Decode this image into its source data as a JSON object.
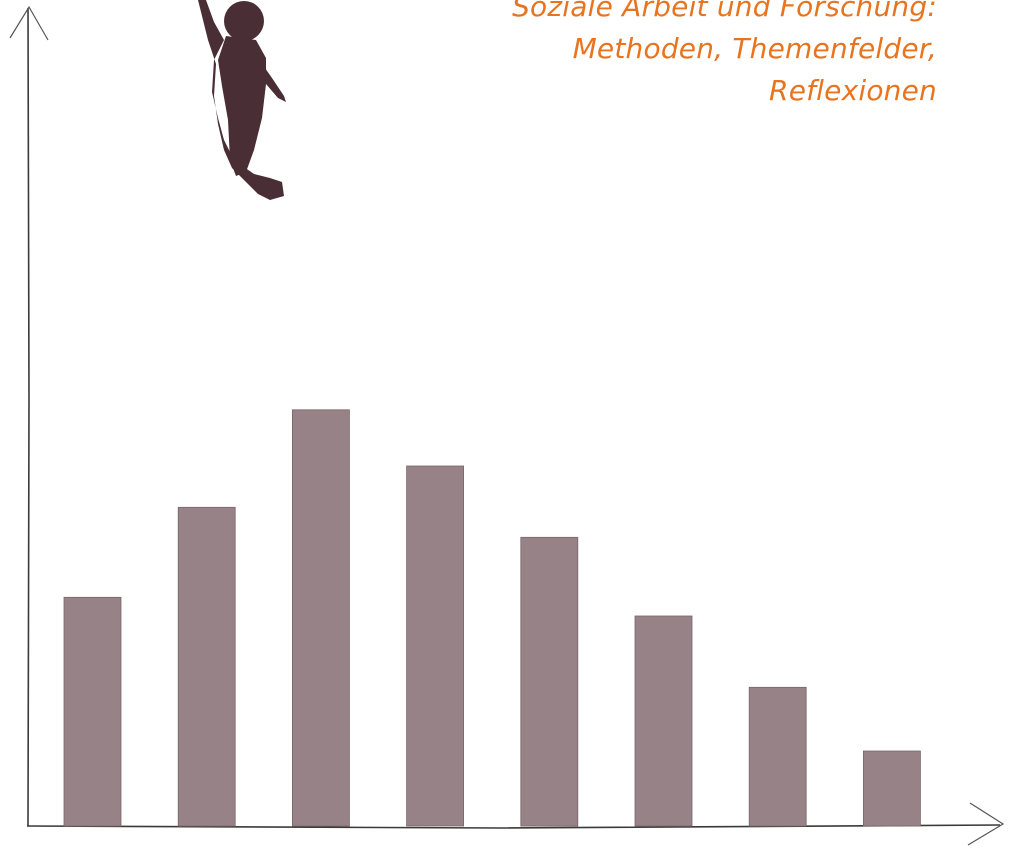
{
  "title_lines": [
    "Soziale Arbeit und Forschung:",
    "Methoden, Themenfelder,",
    "Reflexionen"
  ],
  "colors": {
    "title": "#e8741f",
    "bars": "#978387",
    "figure": "#4a2e36",
    "axes": "#3a3a3a"
  },
  "icons": {
    "figure": "jumping-child-silhouette-icon"
  },
  "chart_data": {
    "type": "bar",
    "categories": [
      "",
      "",
      "",
      "",
      "",
      "",
      "",
      ""
    ],
    "values": [
      30.5,
      42.5,
      55.5,
      48.0,
      38.5,
      28.0,
      18.5,
      10.0
    ],
    "title": "",
    "xlabel": "",
    "ylabel": "",
    "ylim": [
      0,
      80
    ],
    "grid": false,
    "legend": "none"
  }
}
